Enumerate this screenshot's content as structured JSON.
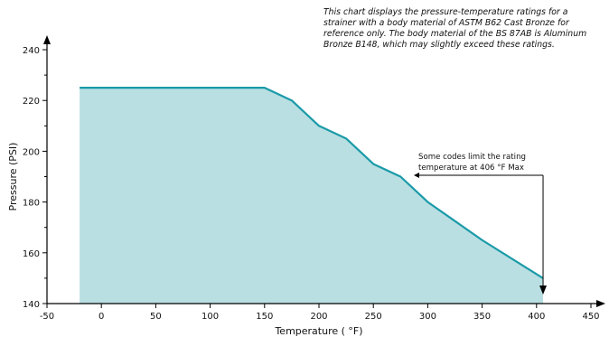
{
  "chart_data": {
    "type": "area",
    "title": "",
    "xlabel": "Temperature ( °F)",
    "ylabel": "Pressure (PSI)",
    "xlim": [
      -50,
      450
    ],
    "ylim": [
      140,
      240
    ],
    "x_ticks": [
      -50,
      0,
      50,
      100,
      150,
      200,
      250,
      300,
      350,
      400,
      450
    ],
    "y_ticks": [
      140,
      160,
      180,
      200,
      220,
      240
    ],
    "grid": false,
    "series": [
      {
        "x": [
          -20,
          150,
          175,
          200,
          225,
          250,
          275,
          300,
          350,
          406
        ],
        "y": [
          225,
          225,
          220,
          210,
          205,
          195,
          190,
          180,
          165,
          150
        ]
      }
    ],
    "annotations": [
      {
        "text": "This chart displays the pressure-temperature ratings for a strainer with a body material of ASTM B62 Cast Bronze for reference only. The body material of the BS 87AB is Aluminum Bronze B148, which may slightly exceed these ratings."
      },
      {
        "text_line1": "Some codes limit the rating",
        "text_line2": "temperature at 406 °F  Max",
        "x": 406
      }
    ]
  },
  "colors": {
    "line": "#1a9aa8",
    "fill": "#b9dfe2",
    "axis": "#000000"
  }
}
